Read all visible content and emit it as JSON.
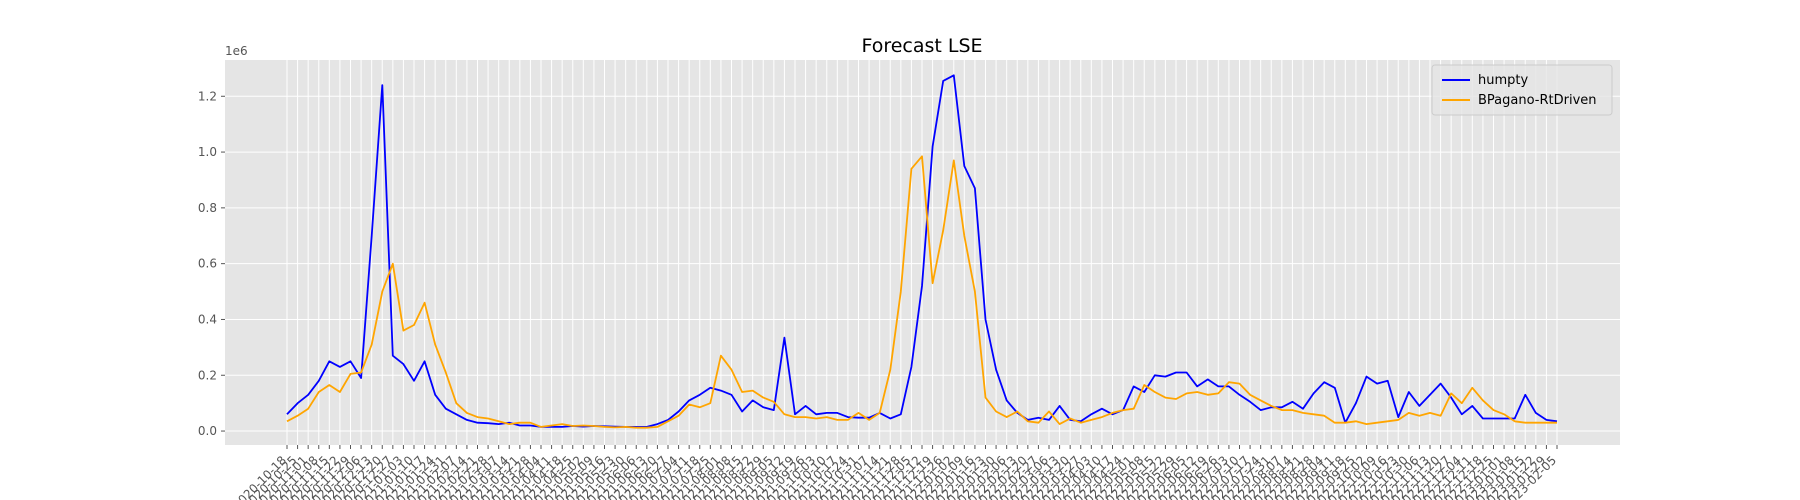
{
  "chart_data": {
    "type": "line",
    "title": "Forecast LSE",
    "xlabel": "",
    "ylabel": "",
    "y_scale_label": "1e6",
    "ylim": [
      -0.05,
      1.33
    ],
    "y_ticks": [
      0.0,
      0.2,
      0.4,
      0.6,
      0.8,
      1.0,
      1.2
    ],
    "y_tick_labels": [
      "0.0",
      "0.2",
      "0.4",
      "0.6",
      "0.8",
      "1.0",
      "1.2"
    ],
    "grid": true,
    "legend_position": "top-right",
    "background": "#e5e5e5",
    "x_tick_labels": [
      "2020-10-18",
      "2020-10-25",
      "2020-11-01",
      "2020-11-08",
      "2020-11-15",
      "2020-11-22",
      "2020-11-29",
      "2020-12-06",
      "2020-12-13",
      "2020-12-20",
      "2020-12-27",
      "2021-01-03",
      "2021-01-10",
      "2021-01-17",
      "2021-01-24",
      "2021-01-31",
      "2021-02-07",
      "2021-02-14",
      "2021-02-21",
      "2021-02-28",
      "2021-03-07",
      "2021-03-14",
      "2021-03-21",
      "2021-03-28",
      "2021-04-04",
      "2021-04-11",
      "2021-04-18",
      "2021-04-25",
      "2021-05-02",
      "2021-05-09",
      "2021-05-16",
      "2021-05-23",
      "2021-05-30",
      "2021-06-06",
      "2021-06-13",
      "2021-06-20",
      "2021-06-27",
      "2021-07-04",
      "2021-07-11",
      "2021-07-18",
      "2021-07-25",
      "2021-08-01",
      "2021-08-08",
      "2021-08-15",
      "2021-08-22",
      "2021-08-29",
      "2021-09-05",
      "2021-09-12",
      "2021-09-19",
      "2021-09-26",
      "2021-10-03",
      "2021-10-10",
      "2021-10-17",
      "2021-10-24",
      "2021-10-31",
      "2021-11-07",
      "2021-11-14",
      "2021-11-21",
      "2021-11-28",
      "2021-12-05",
      "2021-12-12",
      "2021-12-19",
      "2021-12-26",
      "2022-01-02",
      "2022-01-09",
      "2022-01-16",
      "2022-01-23",
      "2022-01-30",
      "2022-02-06",
      "2022-02-13",
      "2022-02-20",
      "2022-02-27",
      "2022-03-06",
      "2022-03-13",
      "2022-03-20",
      "2022-03-27",
      "2022-04-03",
      "2022-04-10",
      "2022-04-17",
      "2022-04-24",
      "2022-05-01",
      "2022-05-08",
      "2022-05-15",
      "2022-05-22",
      "2022-05-29",
      "2022-06-05",
      "2022-06-12",
      "2022-06-19",
      "2022-06-26",
      "2022-07-03",
      "2022-07-10",
      "2022-07-17",
      "2022-07-24",
      "2022-07-31",
      "2022-08-07",
      "2022-08-14",
      "2022-08-21",
      "2022-08-28",
      "2022-09-04",
      "2022-09-11",
      "2022-09-18",
      "2022-09-25",
      "2022-10-02",
      "2022-10-09",
      "2022-10-16",
      "2022-10-23",
      "2022-10-30",
      "2022-11-06",
      "2022-11-13",
      "2022-11-20",
      "2022-11-27",
      "2022-12-04",
      "2022-12-11",
      "2022-12-18",
      "2022-12-25",
      "2023-01-01",
      "2023-01-08",
      "2023-01-15",
      "2023-01-22",
      "2023-01-29",
      "2023-02-05"
    ],
    "series": [
      {
        "name": "humpty",
        "color": "#0000ff",
        "values": [
          0.06,
          0.1,
          0.13,
          0.18,
          0.25,
          0.23,
          0.25,
          0.19,
          0.7,
          1.24,
          0.27,
          0.24,
          0.18,
          0.25,
          0.13,
          0.08,
          0.06,
          0.04,
          0.03,
          0.028,
          0.025,
          0.03,
          0.02,
          0.02,
          0.015,
          0.015,
          0.015,
          0.018,
          0.016,
          0.018,
          0.017,
          0.016,
          0.015,
          0.015,
          0.015,
          0.025,
          0.04,
          0.07,
          0.11,
          0.13,
          0.155,
          0.145,
          0.13,
          0.07,
          0.11,
          0.085,
          0.075,
          0.335,
          0.06,
          0.09,
          0.06,
          0.065,
          0.065,
          0.05,
          0.048,
          0.048,
          0.065,
          0.045,
          0.06,
          0.23,
          0.52,
          1.02,
          1.255,
          1.275,
          0.95,
          0.87,
          0.4,
          0.22,
          0.11,
          0.065,
          0.04,
          0.048,
          0.04,
          0.09,
          0.04,
          0.035,
          0.06,
          0.08,
          0.06,
          0.075,
          0.16,
          0.14,
          0.2,
          0.195,
          0.21,
          0.21,
          0.16,
          0.185,
          0.16,
          0.16,
          0.13,
          0.105,
          0.075,
          0.085,
          0.085,
          0.105,
          0.08,
          0.135,
          0.175,
          0.155,
          0.03,
          0.1,
          0.195,
          0.17,
          0.18,
          0.05,
          0.14,
          0.09,
          0.13,
          0.17,
          0.12,
          0.06,
          0.09,
          0.045,
          0.045,
          0.045,
          0.045,
          0.13,
          0.065,
          0.04,
          0.035
        ]
      },
      {
        "name": "BPagano-RtDriven",
        "color": "#ffa500",
        "values": [
          0.035,
          0.055,
          0.08,
          0.14,
          0.165,
          0.14,
          0.205,
          0.21,
          0.31,
          0.5,
          0.6,
          0.36,
          0.38,
          0.46,
          0.31,
          0.21,
          0.1,
          0.065,
          0.05,
          0.045,
          0.035,
          0.025,
          0.03,
          0.03,
          0.015,
          0.02,
          0.025,
          0.018,
          0.02,
          0.018,
          0.015,
          0.013,
          0.015,
          0.012,
          0.012,
          0.015,
          0.035,
          0.055,
          0.095,
          0.085,
          0.1,
          0.27,
          0.22,
          0.14,
          0.145,
          0.12,
          0.105,
          0.06,
          0.05,
          0.05,
          0.045,
          0.05,
          0.04,
          0.04,
          0.065,
          0.04,
          0.065,
          0.22,
          0.5,
          0.94,
          0.985,
          0.53,
          0.72,
          0.97,
          0.7,
          0.5,
          0.12,
          0.07,
          0.05,
          0.07,
          0.035,
          0.03,
          0.07,
          0.025,
          0.045,
          0.03,
          0.04,
          0.05,
          0.065,
          0.075,
          0.08,
          0.165,
          0.14,
          0.12,
          0.115,
          0.135,
          0.14,
          0.13,
          0.135,
          0.175,
          0.17,
          0.13,
          0.11,
          0.09,
          0.075,
          0.075,
          0.065,
          0.06,
          0.055,
          0.03,
          0.03,
          0.035,
          0.025,
          0.03,
          0.035,
          0.04,
          0.065,
          0.055,
          0.065,
          0.055,
          0.135,
          0.1,
          0.155,
          0.11,
          0.075,
          0.06,
          0.035,
          0.03,
          0.03,
          0.03,
          0.03
        ]
      }
    ]
  }
}
